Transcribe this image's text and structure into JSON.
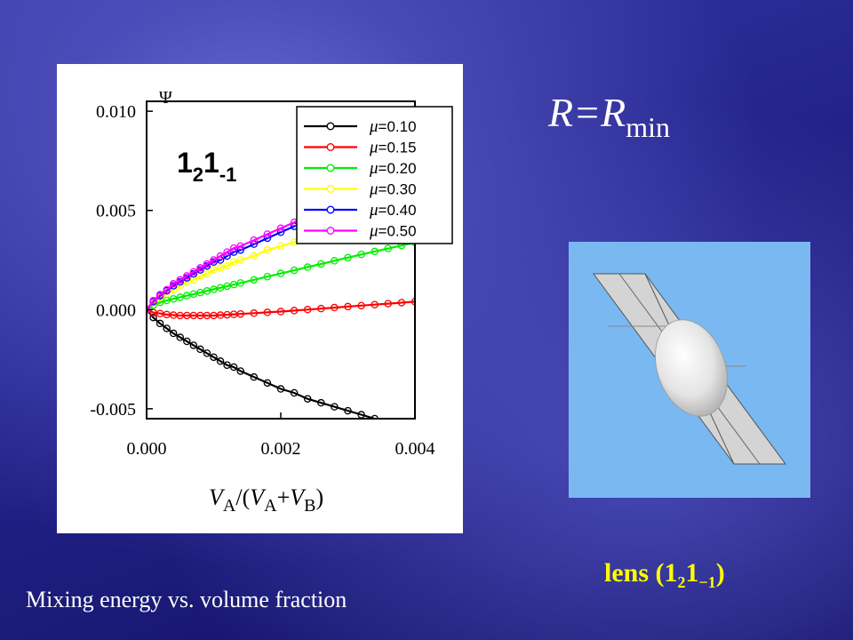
{
  "slide": {
    "title_main": "R=R",
    "title_sub": "min",
    "lens_caption_main": "lens (1",
    "lens_caption_sub1": "2",
    "lens_caption_mid": "1",
    "lens_caption_sub2": "−1",
    "lens_caption_end": ")",
    "footer": "Mixing energy vs. volume fraction",
    "colors": {
      "caption": "#ffff00",
      "lens_bg": "#7ab8f2"
    }
  },
  "chart_data": {
    "type": "line",
    "ylabel": "Ψ",
    "annotation": {
      "base": "1",
      "sub1": "2",
      "mid": "1",
      "sub2": "-1"
    },
    "xlim": [
      0,
      0.004
    ],
    "ylim": [
      -0.0055,
      0.0105
    ],
    "x_ticks": [
      "0.000",
      "0.002",
      "0.004"
    ],
    "y_ticks": [
      "-0.005",
      "0.000",
      "0.005",
      "0.010"
    ],
    "x_tick_values": [
      0,
      0.002,
      0.004
    ],
    "y_tick_values": [
      -0.005,
      0,
      0.005,
      0.01
    ],
    "legend_position": "top-right",
    "series": [
      {
        "name": "μ=0.10",
        "legend_text": "=0.10",
        "color": "#000000",
        "x": [
          0,
          0.0001,
          0.0002,
          0.0003,
          0.0004,
          0.0005,
          0.0006,
          0.0007,
          0.0008,
          0.0009,
          0.001,
          0.0011,
          0.0012,
          0.0013,
          0.0014,
          0.0016,
          0.0018,
          0.002,
          0.0022,
          0.0024,
          0.0026,
          0.0028,
          0.003,
          0.0032,
          0.0034
        ],
        "y": [
          0,
          -0.0004,
          -0.0007,
          -0.00095,
          -0.0012,
          -0.0014,
          -0.0016,
          -0.0018,
          -0.002,
          -0.0022,
          -0.0024,
          -0.0026,
          -0.0028,
          -0.0029,
          -0.0031,
          -0.0034,
          -0.0037,
          -0.004,
          -0.0042,
          -0.0045,
          -0.0047,
          -0.0049,
          -0.0051,
          -0.0053,
          -0.0055
        ]
      },
      {
        "name": "μ=0.15",
        "legend_text": "=0.15",
        "color": "#ff0000",
        "x": [
          0,
          0.0001,
          0.0002,
          0.0003,
          0.0004,
          0.0005,
          0.0006,
          0.0007,
          0.0008,
          0.0009,
          0.001,
          0.0011,
          0.0012,
          0.0013,
          0.0014,
          0.0016,
          0.0018,
          0.002,
          0.0022,
          0.0024,
          0.0026,
          0.0028,
          0.003,
          0.0032,
          0.0034,
          0.0036,
          0.0038,
          0.004
        ],
        "y": [
          0,
          -0.00015,
          -0.0002,
          -0.00025,
          -0.00028,
          -0.0003,
          -0.0003,
          -0.0003,
          -0.0003,
          -0.0003,
          -0.0003,
          -0.00028,
          -0.00026,
          -0.00024,
          -0.00022,
          -0.00018,
          -0.00014,
          -0.0001,
          -5e-05,
          0,
          5e-05,
          0.0001,
          0.00015,
          0.0002,
          0.00025,
          0.0003,
          0.00035,
          0.0004
        ]
      },
      {
        "name": "μ=0.20",
        "legend_text": "=0.20",
        "color": "#00ee00",
        "x": [
          0,
          0.0001,
          0.0002,
          0.0003,
          0.0004,
          0.0005,
          0.0006,
          0.0007,
          0.0008,
          0.0009,
          0.001,
          0.0011,
          0.0012,
          0.0013,
          0.0014,
          0.0016,
          0.0018,
          0.002,
          0.0022,
          0.0024,
          0.0026,
          0.0028,
          0.003,
          0.0032,
          0.0034,
          0.0036,
          0.0038,
          0.004
        ],
        "y": [
          0,
          0.00022,
          0.00036,
          0.00046,
          0.00054,
          0.00062,
          0.0007,
          0.00078,
          0.00086,
          0.00094,
          0.00102,
          0.0011,
          0.00118,
          0.00126,
          0.00134,
          0.0015,
          0.00166,
          0.00182,
          0.00198,
          0.00214,
          0.0023,
          0.00246,
          0.00262,
          0.00278,
          0.00293,
          0.00308,
          0.00323,
          0.00338
        ]
      },
      {
        "name": "μ=0.30",
        "legend_text": "=0.30",
        "color": "#ffff00",
        "x": [
          0,
          0.0001,
          0.0002,
          0.0003,
          0.0004,
          0.0005,
          0.0006,
          0.0007,
          0.0008,
          0.0009,
          0.001,
          0.0011,
          0.0012,
          0.0013,
          0.0014,
          0.0016,
          0.0018,
          0.002,
          0.0022,
          0.0024,
          0.0026,
          0.0028
        ],
        "y": [
          0,
          0.00035,
          0.0006,
          0.0008,
          0.001,
          0.0012,
          0.0014,
          0.0015,
          0.0017,
          0.0018,
          0.002,
          0.0021,
          0.0022,
          0.0024,
          0.0025,
          0.0027,
          0.003,
          0.0032,
          0.0034,
          0.0036,
          0.0038,
          0.004
        ]
      },
      {
        "name": "μ=0.40",
        "legend_text": "=0.40",
        "color": "#0000ff",
        "x": [
          0,
          0.0001,
          0.0002,
          0.0003,
          0.0004,
          0.0005,
          0.0006,
          0.0007,
          0.0008,
          0.0009,
          0.001,
          0.0011,
          0.0012,
          0.0013,
          0.0014,
          0.0016,
          0.0018,
          0.002,
          0.0022,
          0.0024,
          0.0026,
          0.0028
        ],
        "y": [
          0,
          0.0004,
          0.0007,
          0.00095,
          0.0012,
          0.0014,
          0.0016,
          0.0018,
          0.002,
          0.0022,
          0.0024,
          0.0025,
          0.0027,
          0.0029,
          0.003,
          0.0033,
          0.0036,
          0.0039,
          0.0042,
          0.0045,
          0.0048,
          0.005
        ]
      },
      {
        "name": "μ=0.50",
        "legend_text": "=0.50",
        "color": "#ff00ff",
        "x": [
          0,
          0.0001,
          0.0002,
          0.0003,
          0.0004,
          0.0005,
          0.0006,
          0.0007,
          0.0008,
          0.0009,
          0.001,
          0.0011,
          0.0012,
          0.0013,
          0.0014,
          0.0016,
          0.0018,
          0.002,
          0.0022,
          0.0024,
          0.0026
        ],
        "y": [
          0,
          0.00045,
          0.00075,
          0.001,
          0.0013,
          0.0015,
          0.0017,
          0.0019,
          0.0021,
          0.0023,
          0.0025,
          0.0027,
          0.0029,
          0.0031,
          0.0032,
          0.0035,
          0.0038,
          0.0041,
          0.0044,
          0.0047,
          0.0049
        ]
      }
    ],
    "xlabel_parts": {
      "v1": "V",
      "s1": "A",
      "mid": "/(",
      "v2": "V",
      "s2": "A",
      "plus": "+",
      "v3": "V",
      "s3": "B",
      "end": ")"
    }
  }
}
